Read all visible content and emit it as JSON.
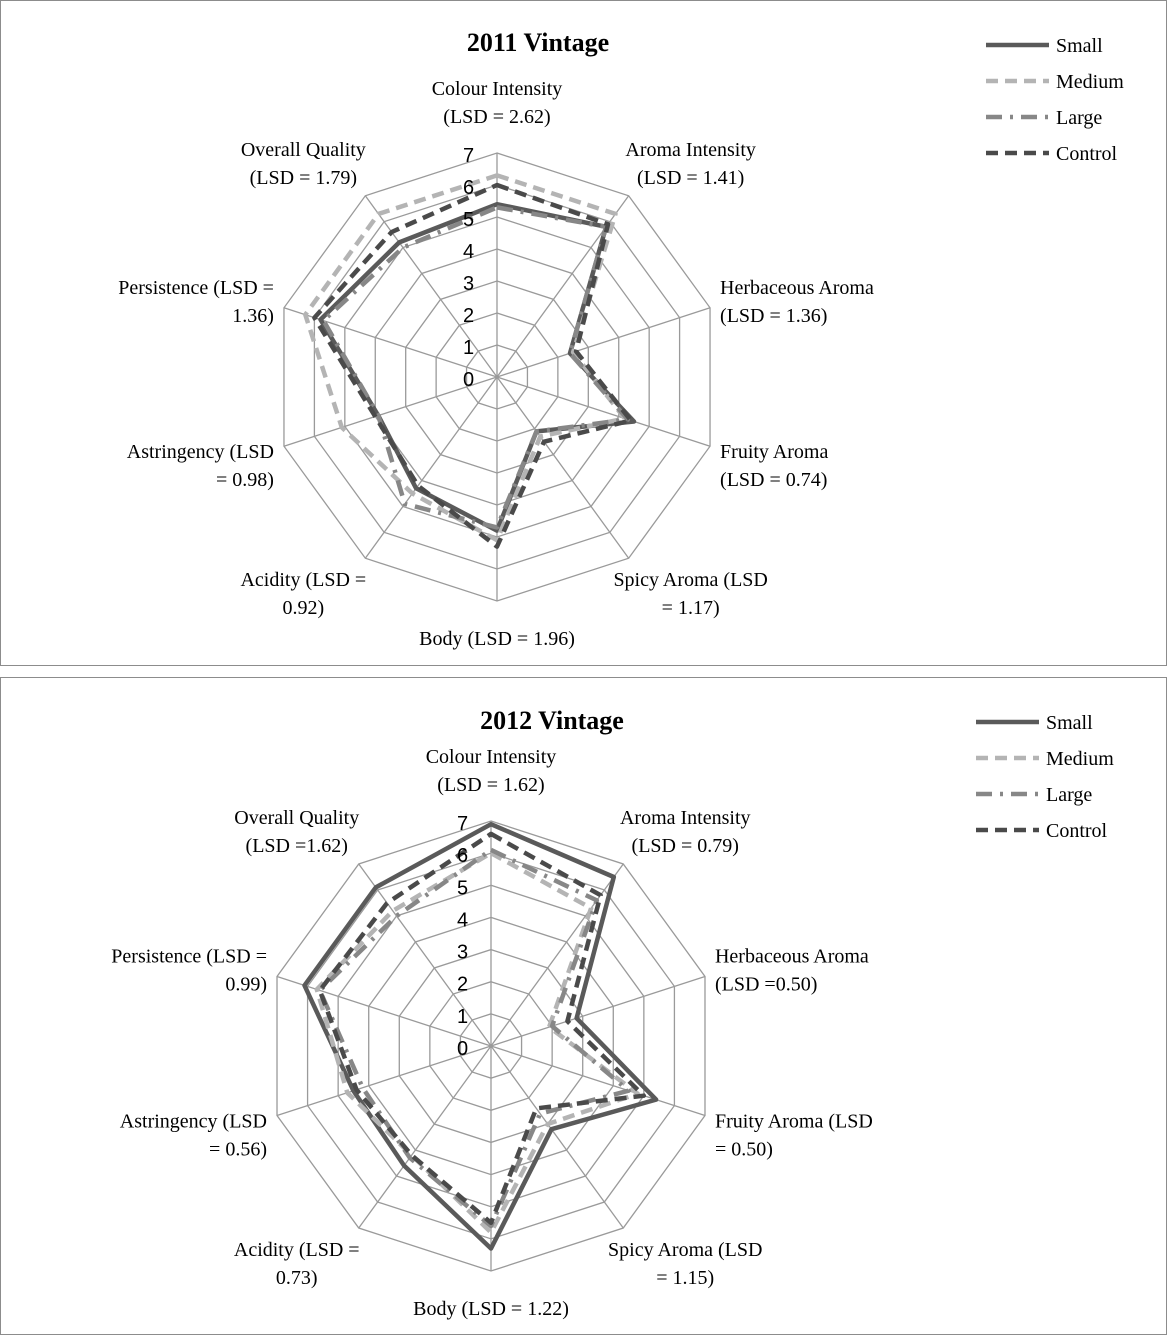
{
  "chart_data": [
    {
      "type": "radar",
      "title": "2011 Vintage",
      "axes": [
        [
          "Colour Intensity",
          "(LSD = 2.62)"
        ],
        [
          "Aroma Intensity",
          "(LSD = 1.41)"
        ],
        [
          "Herbaceous Aroma",
          "(LSD = 1.36)"
        ],
        [
          "Fruity Aroma",
          "(LSD = 0.74)"
        ],
        [
          "Spicy Aroma (LSD",
          "= 1.17)"
        ],
        [
          "Body (LSD = 1.96)"
        ],
        [
          "Acidity (LSD =",
          "0.92)"
        ],
        [
          "Astringency (LSD",
          "= 0.98)"
        ],
        [
          "Persistence (LSD =",
          "1.36)"
        ],
        [
          "Overall Quality",
          "(LSD = 1.79)"
        ]
      ],
      "scale": {
        "min": 0,
        "max": 7,
        "ticks": [
          "0",
          "1",
          "2",
          "3",
          "4",
          "5",
          "6",
          "7"
        ]
      },
      "legend_position": "top-right",
      "series": [
        {
          "name": "Small",
          "color": "#5a5a5a",
          "style": "solid",
          "values": [
            5.4,
            5.8,
            2.4,
            4.5,
            2.1,
            4.8,
            4.3,
            3.9,
            5.8,
            5.2
          ]
        },
        {
          "name": "Medium",
          "color": "#b4b4b4",
          "style": "dashed",
          "values": [
            6.3,
            6.3,
            2.5,
            4.2,
            2.3,
            5.1,
            4.5,
            5.1,
            6.3,
            6.3
          ]
        },
        {
          "name": "Large",
          "color": "#878787",
          "style": "dash-dot",
          "values": [
            5.3,
            5.8,
            2.4,
            4.3,
            2.1,
            4.7,
            4.9,
            3.9,
            5.7,
            5.0
          ]
        },
        {
          "name": "Control",
          "color": "#4a4a4a",
          "style": "dashed",
          "values": [
            6.0,
            5.9,
            2.6,
            4.4,
            2.5,
            5.3,
            4.2,
            4.0,
            6.0,
            5.6
          ]
        }
      ]
    },
    {
      "type": "radar",
      "title": "2012 Vintage",
      "axes": [
        [
          "Colour Intensity",
          "(LSD = 1.62)"
        ],
        [
          "Aroma Intensity",
          "(LSD = 0.79)"
        ],
        [
          "Herbaceous Aroma",
          "(LSD =0.50)"
        ],
        [
          "Fruity Aroma (LSD",
          "= 0.50)"
        ],
        [
          "Spicy Aroma (LSD",
          "= 1.15)"
        ],
        [
          "Body (LSD = 1.22)"
        ],
        [
          "Acidity (LSD =",
          "0.73)"
        ],
        [
          "Astringency (LSD",
          "= 0.56)"
        ],
        [
          "Persistence (LSD =",
          "0.99)"
        ],
        [
          "Overall Quality",
          "(LSD =1.62)"
        ]
      ],
      "scale": {
        "min": 0,
        "max": 7,
        "ticks": [
          "0",
          "1",
          "2",
          "3",
          "4",
          "5",
          "6",
          "7"
        ]
      },
      "legend_position": "top-right",
      "series": [
        {
          "name": "Small",
          "color": "#5a5a5a",
          "style": "solid",
          "values": [
            6.9,
            6.5,
            2.8,
            5.4,
            3.2,
            6.3,
            4.6,
            4.5,
            6.1,
            6.1
          ]
        },
        {
          "name": "Medium",
          "color": "#b4b4b4",
          "style": "dashed",
          "values": [
            6.0,
            5.3,
            1.9,
            4.8,
            3.0,
            5.8,
            4.2,
            4.7,
            5.7,
            5.2
          ]
        },
        {
          "name": "Large",
          "color": "#878787",
          "style": "dash-dot",
          "values": [
            6.1,
            5.6,
            2.0,
            4.5,
            2.6,
            5.6,
            4.3,
            4.2,
            5.6,
            5.0
          ]
        },
        {
          "name": "Control",
          "color": "#4a4a4a",
          "style": "dashed",
          "values": [
            6.6,
            5.8,
            2.5,
            5.0,
            2.4,
            5.5,
            4.2,
            4.4,
            5.6,
            5.5
          ]
        }
      ]
    }
  ]
}
